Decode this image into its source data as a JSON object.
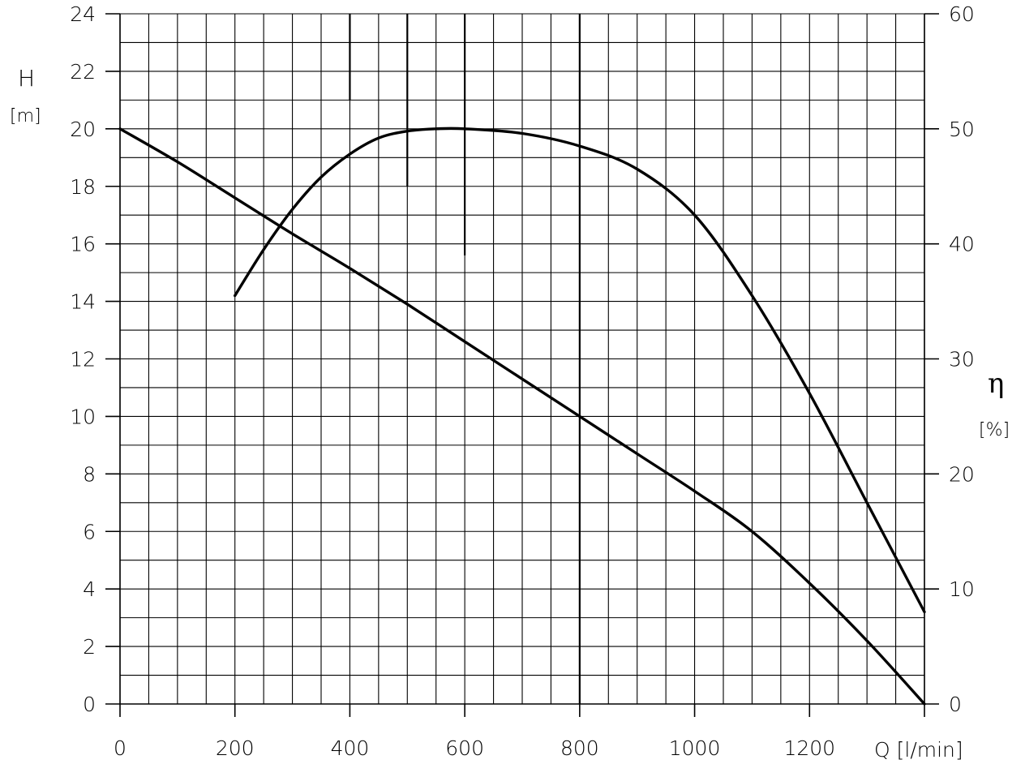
{
  "chart_data": {
    "type": "line",
    "x_axis": {
      "label": "Q [l/min]",
      "range": [
        0,
        1400
      ],
      "ticks": [
        "0",
        "200",
        "400",
        "600",
        "800",
        "1000",
        "1200"
      ]
    },
    "y_axis_left": {
      "label": "H",
      "unit": "[m]",
      "range": [
        0,
        24
      ],
      "ticks": [
        "0",
        "2",
        "4",
        "6",
        "8",
        "10",
        "12",
        "14",
        "16",
        "18",
        "20",
        "22",
        "24"
      ]
    },
    "y_axis_right": {
      "label": "η",
      "unit": "[%]",
      "range": [
        0,
        60
      ],
      "ticks": [
        "0",
        "10",
        "20",
        "30",
        "40",
        "50",
        "60"
      ]
    },
    "grid": true,
    "series": [
      {
        "axis": "left",
        "x": [
          0,
          100,
          200,
          300,
          400,
          500,
          600,
          700,
          800,
          900,
          1000,
          1100,
          1200,
          1300,
          1400
        ],
        "values": [
          20.0,
          18.85,
          17.6,
          16.35,
          15.15,
          13.9,
          12.6,
          11.3,
          10.0,
          8.7,
          7.4,
          6.0,
          4.2,
          2.2,
          0.0
        ]
      },
      {
        "axis": "right",
        "x": [
          200,
          250,
          300,
          350,
          400,
          450,
          500,
          550,
          600,
          700,
          800,
          900,
          1000,
          1100,
          1200,
          1300,
          1400
        ],
        "values": [
          35.5,
          39.5,
          43.0,
          45.8,
          47.8,
          49.2,
          49.8,
          50.0,
          50.0,
          49.6,
          48.5,
          46.5,
          42.5,
          35.5,
          27.0,
          17.5,
          8.0
        ]
      }
    ],
    "reference_lines": [
      {
        "x": 400,
        "y_from": 21,
        "y_to": 24
      },
      {
        "x": 500,
        "y_from": 18,
        "y_to": 24
      },
      {
        "x": 600,
        "y_from": 15.6,
        "y_to": 24
      },
      {
        "x": 800,
        "y_from": 0,
        "y_to": 24
      }
    ]
  }
}
